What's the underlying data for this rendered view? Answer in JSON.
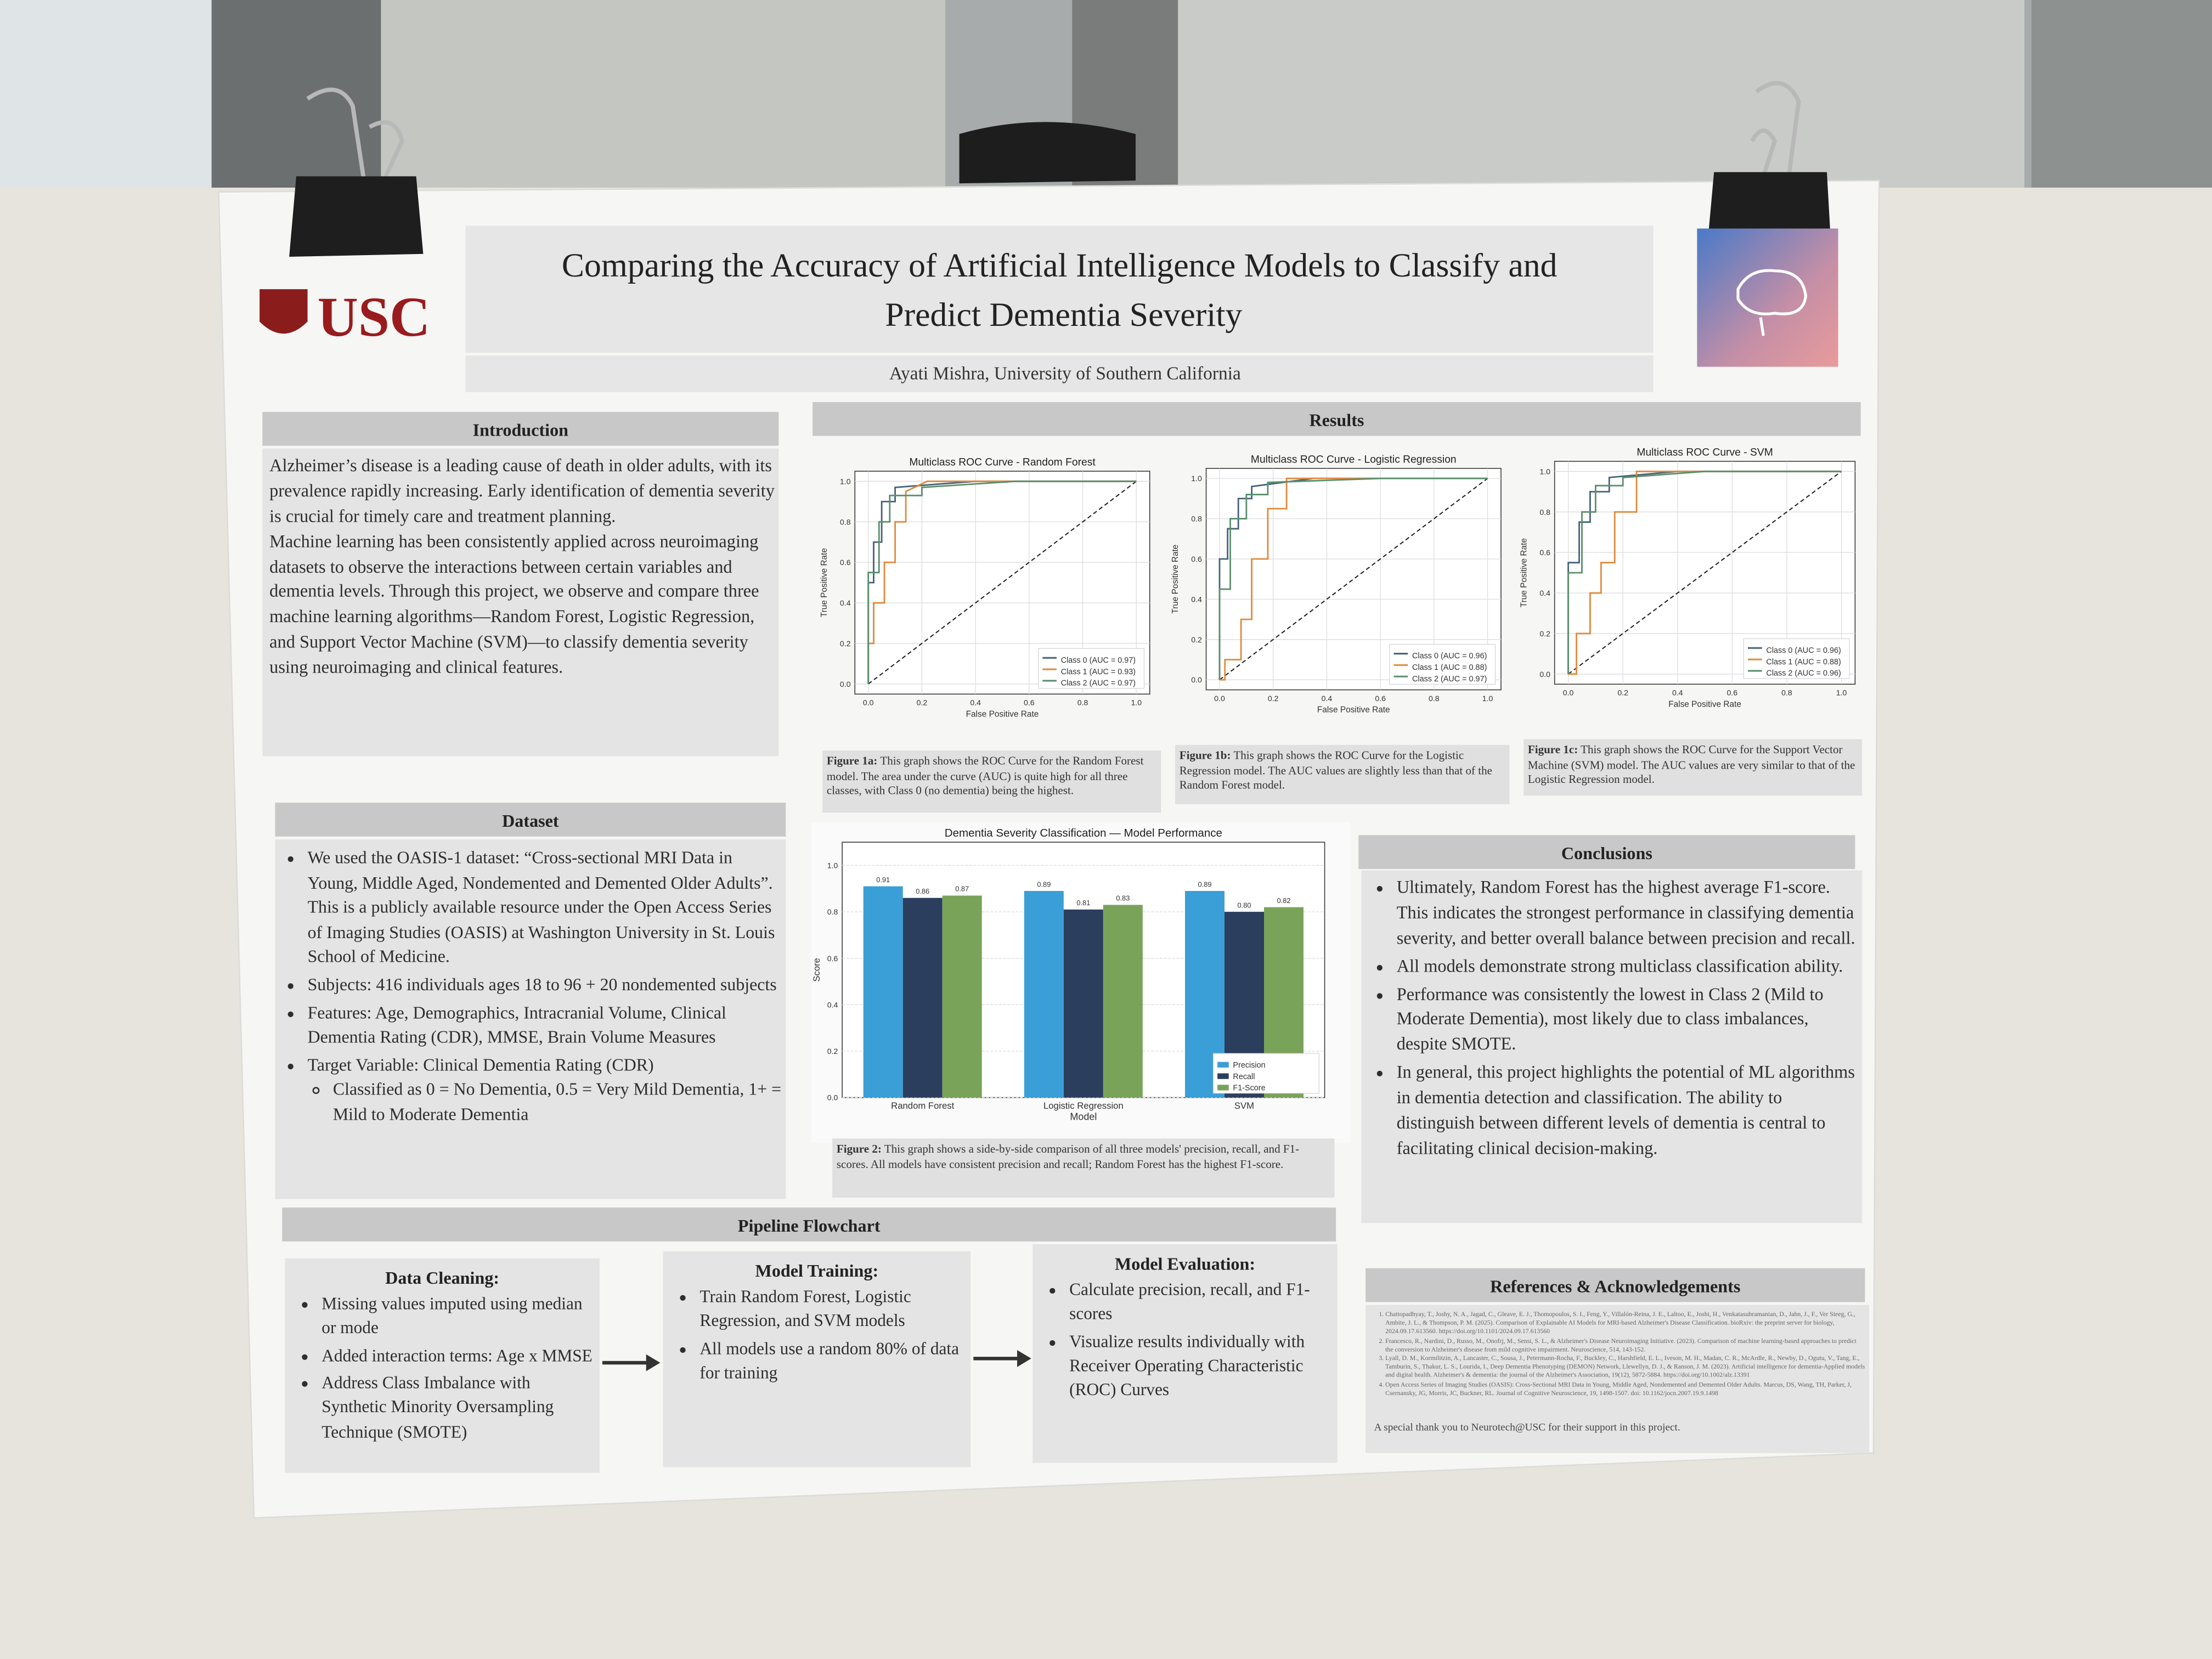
{
  "header": {
    "logo": "USC",
    "title_lines": [
      "Comparing the Accuracy of Artificial Intelligence Models to Classify and",
      "Predict Dementia Severity"
    ],
    "author": "Ayati Mishra, University of Southern California"
  },
  "introduction": {
    "heading": "Introduction",
    "paragraphs": [
      "Alzheimer’s disease is a leading cause of death in older adults, with its prevalence rapidly increasing. Early identification of dementia severity is crucial for timely care and treatment planning.",
      "Machine learning has been consistently applied across neuroimaging datasets to observe the interactions between certain variables and dementia levels. Through this project, we observe and compare three machine learning algorithms—Random Forest, Logistic Regression, and Support Vector Machine (SVM)—to classify dementia severity using neuroimaging and clinical features."
    ]
  },
  "dataset": {
    "heading": "Dataset",
    "bullets": [
      "We used the OASIS-1 dataset: “Cross-sectional MRI Data in Young, Middle Aged, Nondemented and Demented Older Adults”. This is a publicly available resource under the Open Access Series of Imaging Studies (OASIS) at Washington University in St. Louis School of Medicine.",
      "Subjects: 416 individuals ages 18 to 96 + 20 nondemented subjects",
      "Features: Age, Demographics, Intracranial Volume, Clinical Dementia Rating (CDR), MMSE, Brain Volume Measures",
      "Target Variable: Clinical Dementia Rating (CDR)"
    ],
    "sub_bullets": [
      "Classified as 0 = No Dementia, 0.5 = Very Mild Dementia, 1+ = Mild to Moderate Dementia"
    ]
  },
  "results": {
    "heading": "Results"
  },
  "conclusions": {
    "heading": "Conclusions",
    "bullets": [
      "Ultimately, Random Forest has the highest average F1-score. This indicates the strongest performance in classifying dementia severity, and better overall balance between precision and recall.",
      "All models demonstrate strong multiclass classification ability.",
      "Performance was consistently the lowest in Class 2 (Mild to Moderate Dementia), most likely due to class imbalances, despite SMOTE.",
      "In general, this project highlights the potential of ML algorithms in dementia detection and classification. The ability to distinguish between different levels of dementia is central to facilitating clinical decision-making."
    ]
  },
  "pipeline": {
    "heading": "Pipeline Flowchart",
    "steps": [
      {
        "title": "Data Cleaning:",
        "bullets": [
          "Missing values imputed using median or mode",
          "Added interaction terms: Age x MMSE",
          "Address Class Imbalance with Synthetic Minority Oversampling Technique (SMOTE)"
        ]
      },
      {
        "title": "Model Training:",
        "bullets": [
          "Train Random Forest, Logistic Regression, and SVM models",
          "All models use a random 80% of data for training"
        ]
      },
      {
        "title": "Model Evaluation:",
        "bullets": [
          "Calculate precision, recall, and F1-scores",
          "Visualize results individually with Receiver Operating Characteristic (ROC) Curves"
        ]
      }
    ]
  },
  "references": {
    "heading": "References & Acknowledgements",
    "items": [
      "Chattopadhyay, T., Joshy, N. A., Jagad, C., Gleave, E. J., Thomopoulos, S. I., Feng, Y., Villalón-Reina, J. E., Laltoo, E., Joshi, H., Venkatasubramanian, D., Jahn, J., F., Ver Steeg, G., Ambite, J. L., & Thompson, P. M. (2025). Comparison of Explainable AI Models for MRI-based Alzheimer's Disease Classification. bioRxiv: the preprint server for biology, 2024.09.17.613560. https://doi.org/10.1101/2024.09.17.613560",
      "Francesco, R., Nardini, D., Russo, M., Onofrj, M., Sensi, S. L., & Alzheimer's Disease Neuroimaging Initiative. (2023). Comparison of machine learning-based approaches to predict the conversion to Alzheimer's disease from mild cognitive impairment. Neuroscience, 514, 143-152.",
      "Lyall, D. M., Kormilitzin, A., Lancaster, C., Sousa, J., Petermann-Rocha, F., Buckley, C., Harshfield, E. L., Iveson, M. H., Madan, C. R., McArdle, R., Newby, D., Ogutu, V., Tang, E., Tamburin, S., Thakur, L. S., Lourida, I., Deep Dementia Phenotyping (DEMON) Network, Llewellyn, D. J., & Ranson, J. M. (2023). Artificial intelligence for dementia-Applied models and digital health. Alzheimer's & dementia: the journal of the Alzheimer's Association, 19(12), 5872-5884. https://doi.org/10.1002/alz.13391",
      "Open Access Series of Imaging Studies (OASIS): Cross-Sectional MRI Data in Young, Middle Aged, Nondemented and Demented Older Adults. Marcus, DS, Wang, TH, Parker, J, Csernansky, JG, Morris, JC, Buckner, RL. Journal of Cognitive Neuroscience, 19, 1498-1507. doi: 10.1162/jocn.2007.19.9.1498"
    ],
    "acknowledgement": "A special thank you to Neurotech@USC for their support in this project."
  },
  "chart_data": [
    {
      "type": "line",
      "title": "Multiclass ROC Curve - Random Forest",
      "x_label": "False Positive Rate",
      "y_label": "True Positive Rate",
      "xlim": [
        -0.05,
        1.05
      ],
      "ylim": [
        -0.05,
        1.05
      ],
      "xticks": [
        {
          "value": 0,
          "label": "0.0"
        },
        {
          "value": 0.2,
          "label": "0.2"
        },
        {
          "value": 0.4,
          "label": "0.4"
        },
        {
          "value": 0.6,
          "label": "0.6"
        },
        {
          "value": 0.8,
          "label": "0.8"
        },
        {
          "value": 1,
          "label": "1.0"
        }
      ],
      "yticks": [
        {
          "value": 0,
          "label": "0.0"
        },
        {
          "value": 0.2,
          "label": "0.2"
        },
        {
          "value": 0.4,
          "label": "0.4"
        },
        {
          "value": 0.6,
          "label": "0.6"
        },
        {
          "value": 0.8,
          "label": "0.8"
        },
        {
          "value": 1,
          "label": "1.0"
        }
      ],
      "grid": true,
      "legend": "lower right",
      "series": [
        {
          "name": "Class 0 (AUC = 0.97)",
          "color": "#46637a",
          "x": [
            0,
            0,
            0.02,
            0.02,
            0.05,
            0.05,
            0.1,
            0.1,
            0.4,
            1
          ],
          "values": [
            0,
            0.5,
            0.5,
            0.7,
            0.7,
            0.9,
            0.9,
            0.97,
            1,
            1
          ]
        },
        {
          "name": "Class 1 (AUC = 0.93)",
          "color": "#e08a3c",
          "x": [
            0,
            0,
            0.02,
            0.02,
            0.06,
            0.06,
            0.1,
            0.1,
            0.14,
            0.14,
            0.22,
            1
          ],
          "values": [
            0,
            0.2,
            0.2,
            0.4,
            0.4,
            0.6,
            0.6,
            0.8,
            0.8,
            0.95,
            1,
            1
          ]
        },
        {
          "name": "Class 2 (AUC = 0.97)",
          "color": "#5b8f6e",
          "x": [
            0,
            0,
            0.04,
            0.04,
            0.08,
            0.08,
            0.2,
            0.2,
            0.55,
            1
          ],
          "values": [
            0,
            0.55,
            0.55,
            0.8,
            0.8,
            0.93,
            0.93,
            0.97,
            1,
            1
          ]
        }
      ],
      "caption_label": "Figure 1a:",
      "caption": "This graph shows the ROC Curve for the Random Forest model. The area under the curve (AUC) is quite high for all three classes, with Class 0 (no dementia) being the highest."
    },
    {
      "type": "line",
      "title": "Multiclass ROC Curve - Logistic Regression",
      "x_label": "False Positive Rate",
      "y_label": "True Positive Rate",
      "xlim": [
        -0.05,
        1.05
      ],
      "ylim": [
        -0.05,
        1.05
      ],
      "xticks": [
        {
          "value": 0,
          "label": "0.0"
        },
        {
          "value": 0.2,
          "label": "0.2"
        },
        {
          "value": 0.4,
          "label": "0.4"
        },
        {
          "value": 0.6,
          "label": "0.6"
        },
        {
          "value": 0.8,
          "label": "0.8"
        },
        {
          "value": 1,
          "label": "1.0"
        }
      ],
      "yticks": [
        {
          "value": 0,
          "label": "0.0"
        },
        {
          "value": 0.2,
          "label": "0.2"
        },
        {
          "value": 0.4,
          "label": "0.4"
        },
        {
          "value": 0.6,
          "label": "0.6"
        },
        {
          "value": 0.8,
          "label": "0.8"
        },
        {
          "value": 1,
          "label": "1.0"
        }
      ],
      "grid": true,
      "legend": "lower right",
      "series": [
        {
          "name": "Class 0 (AUC = 0.96)",
          "color": "#46637a",
          "x": [
            0,
            0,
            0.03,
            0.03,
            0.07,
            0.07,
            0.12,
            0.12,
            0.35,
            1
          ],
          "values": [
            0,
            0.6,
            0.6,
            0.75,
            0.75,
            0.9,
            0.9,
            0.96,
            1,
            1
          ]
        },
        {
          "name": "Class 1 (AUC = 0.88)",
          "color": "#e08a3c",
          "x": [
            0,
            0.02,
            0.02,
            0.08,
            0.08,
            0.12,
            0.12,
            0.18,
            0.18,
            0.25,
            0.25,
            1
          ],
          "values": [
            0,
            0,
            0.1,
            0.1,
            0.3,
            0.3,
            0.6,
            0.6,
            0.85,
            0.85,
            1,
            1
          ]
        },
        {
          "name": "Class 2 (AUC = 0.97)",
          "color": "#5b8f6e",
          "x": [
            0,
            0,
            0.04,
            0.04,
            0.1,
            0.1,
            0.18,
            0.18,
            0.6,
            1
          ],
          "values": [
            0,
            0.45,
            0.45,
            0.8,
            0.8,
            0.92,
            0.92,
            0.98,
            1,
            1
          ]
        }
      ],
      "caption_label": "Figure 1b:",
      "caption": "This graph shows the ROC Curve for the Logistic Regression  model. The AUC values are slightly less than that of the Random Forest model."
    },
    {
      "type": "line",
      "title": "Multiclass ROC Curve - SVM",
      "x_label": "False Positive Rate",
      "y_label": "True Positive Rate",
      "xlim": [
        -0.05,
        1.05
      ],
      "ylim": [
        -0.05,
        1.05
      ],
      "xticks": [
        {
          "value": 0,
          "label": "0.0"
        },
        {
          "value": 0.2,
          "label": "0.2"
        },
        {
          "value": 0.4,
          "label": "0.4"
        },
        {
          "value": 0.6,
          "label": "0.6"
        },
        {
          "value": 0.8,
          "label": "0.8"
        },
        {
          "value": 1,
          "label": "1.0"
        }
      ],
      "yticks": [
        {
          "value": 0,
          "label": "0.0"
        },
        {
          "value": 0.2,
          "label": "0.2"
        },
        {
          "value": 0.4,
          "label": "0.4"
        },
        {
          "value": 0.6,
          "label": "0.6"
        },
        {
          "value": 0.8,
          "label": "0.8"
        },
        {
          "value": 1,
          "label": "1.0"
        }
      ],
      "grid": true,
      "legend": "lower right",
      "series": [
        {
          "name": "Class 0 (AUC = 0.96)",
          "color": "#46637a",
          "x": [
            0,
            0,
            0.04,
            0.04,
            0.08,
            0.08,
            0.15,
            0.15,
            0.4,
            1
          ],
          "values": [
            0,
            0.55,
            0.55,
            0.75,
            0.75,
            0.9,
            0.9,
            0.97,
            1,
            1
          ]
        },
        {
          "name": "Class 1 (AUC = 0.88)",
          "color": "#e08a3c",
          "x": [
            0,
            0.03,
            0.03,
            0.08,
            0.08,
            0.12,
            0.12,
            0.17,
            0.17,
            0.25,
            0.25,
            1
          ],
          "values": [
            0,
            0,
            0.2,
            0.2,
            0.4,
            0.4,
            0.55,
            0.55,
            0.8,
            0.8,
            1,
            1
          ]
        },
        {
          "name": "Class 2 (AUC = 0.96)",
          "color": "#5b8f6e",
          "x": [
            0,
            0,
            0.05,
            0.05,
            0.1,
            0.1,
            0.2,
            0.2,
            0.5,
            1
          ],
          "values": [
            0,
            0.5,
            0.5,
            0.8,
            0.8,
            0.93,
            0.93,
            0.97,
            1,
            1
          ]
        }
      ],
      "caption_label": "Figure 1c:",
      "caption": "This graph shows the ROC Curve for the Support Vector Machine (SVM)  model. The AUC values are very similar to that of the Logistic Regression model."
    },
    {
      "type": "bar",
      "title": "Dementia Severity Classification — Model Performance",
      "x_label": "Model",
      "y_label": "Score",
      "categories": [
        "Random Forest",
        "Logistic Regression",
        "SVM"
      ],
      "ylim": [
        0,
        1.1
      ],
      "yticks": [
        {
          "value": 0,
          "label": "0.0"
        },
        {
          "value": 0.2,
          "label": "0.2"
        },
        {
          "value": 0.4,
          "label": "0.4"
        },
        {
          "value": 0.6,
          "label": "0.6"
        },
        {
          "value": 0.8,
          "label": "0.8"
        },
        {
          "value": 1,
          "label": "1.0"
        }
      ],
      "grid": true,
      "legend": "lower right",
      "series": [
        {
          "name": "Precision",
          "color": "#3a9fd6",
          "values": [
            0.91,
            0.89,
            0.89
          ],
          "value_labels": [
            "0.91",
            "0.89",
            "0.89"
          ]
        },
        {
          "name": "Recall",
          "color": "#2c3e5e",
          "values": [
            0.86,
            0.81,
            0.8
          ],
          "value_labels": [
            "0.86",
            "0.81",
            "0.80"
          ]
        },
        {
          "name": "F1-Score",
          "color": "#7aa35a",
          "values": [
            0.87,
            0.83,
            0.82
          ],
          "value_labels": [
            "0.87",
            "0.83",
            "0.82"
          ]
        }
      ],
      "caption_label": "Figure 2:",
      "caption": "This graph shows a side-by-side comparison of all three models' precision, recall, and F1-scores. All models have consistent precision and recall; Random Forest has the highest F1-score."
    }
  ]
}
